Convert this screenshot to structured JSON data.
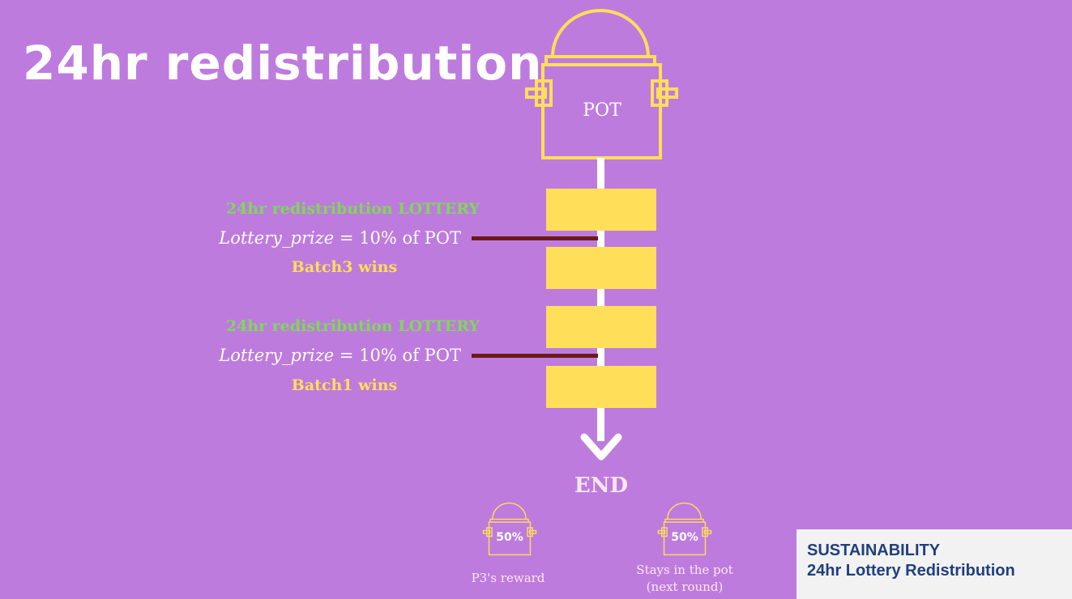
{
  "title": "24hr redistribution",
  "pot": {
    "label": "POT",
    "icon": "pot-icon"
  },
  "lotteries": [
    {
      "title": "24hr redistribution LOTTERY",
      "prize_var": "Lottery_prize",
      "prize_rest": " = 10% of POT",
      "winner": "Batch3 wins"
    },
    {
      "title": "24hr redistribution LOTTERY",
      "prize_var": "Lottery_prize",
      "prize_rest": " = 10% of POT",
      "winner": "Batch1 wins"
    }
  ],
  "end_label": "END",
  "split": [
    {
      "percent": "50%",
      "caption": "P3's reward"
    },
    {
      "percent": "50%",
      "caption_line1": "Stays in the pot",
      "caption_line2": "(next round)"
    }
  ],
  "info": {
    "line1": "SUSTAINABILITY",
    "line2": "24hr Lottery Redistribution"
  },
  "colors": {
    "background": "#BE7BDE",
    "pot_outline": "#FFDE59",
    "batch": "#FFDE59",
    "lottery_title": "#7ED957",
    "connector": "#6B1A1A",
    "info_text": "#1F3F7F"
  }
}
